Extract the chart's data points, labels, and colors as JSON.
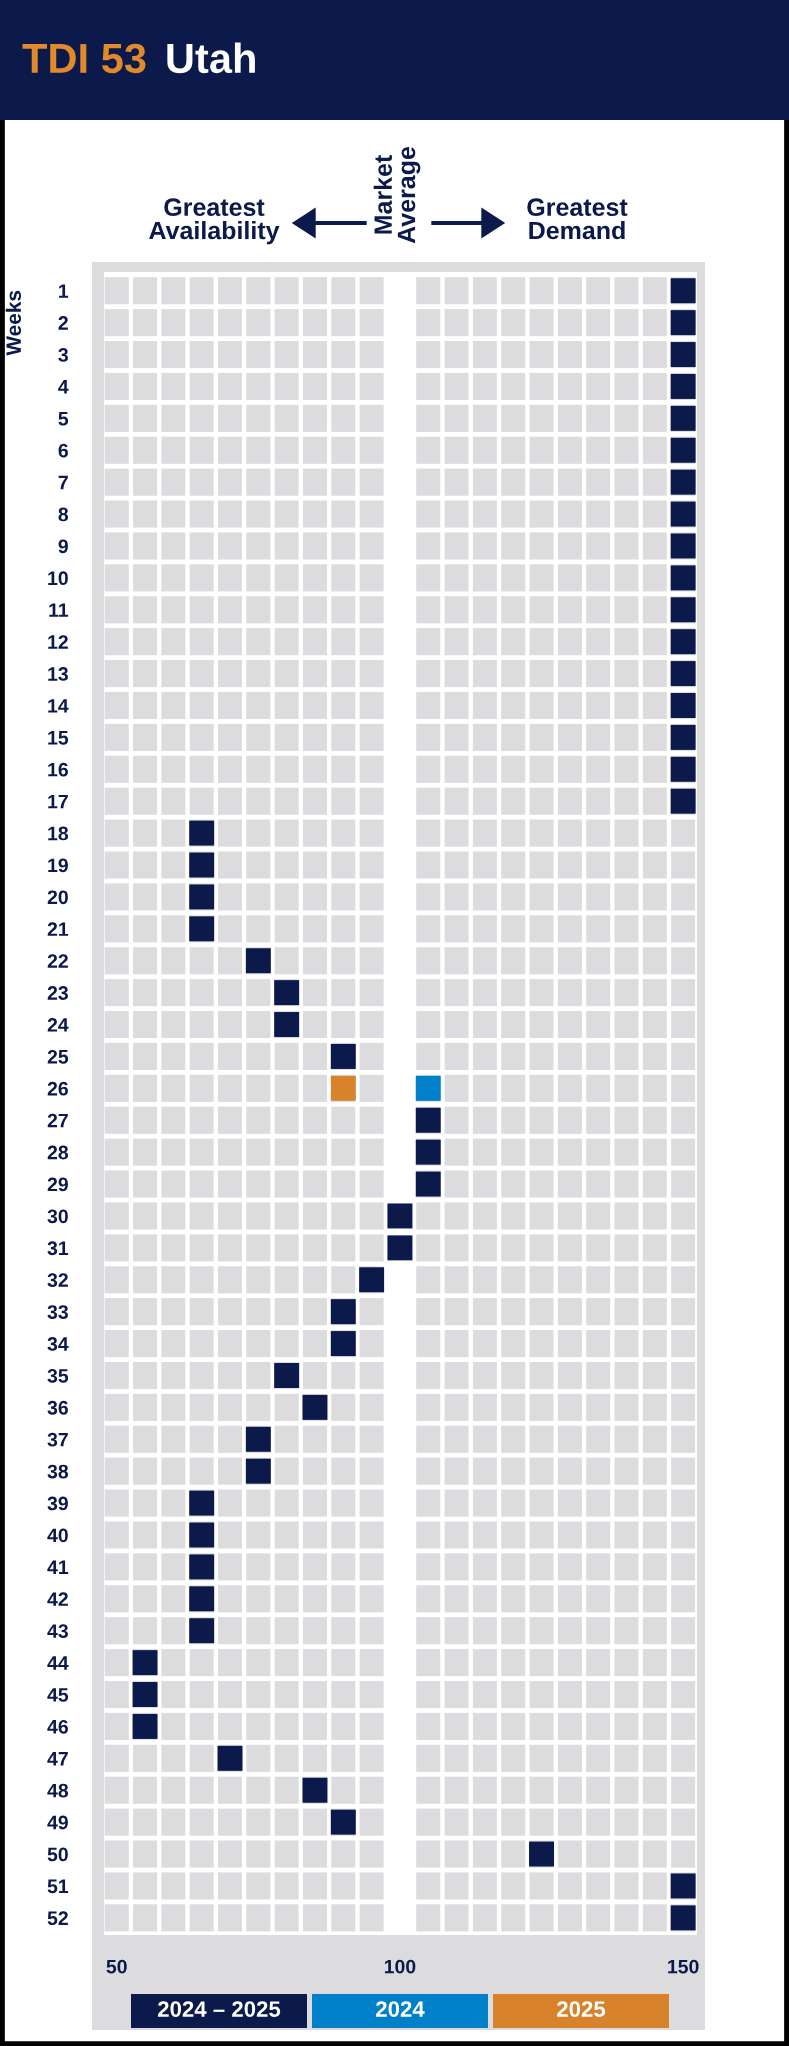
{
  "chart_data": {
    "type": "scatter",
    "title": "TDI 53",
    "subtitle": "Utah",
    "ylabel": "Weeks",
    "annotations": [
      "Greatest\nAvailability",
      "Market\nAverage",
      "Greatest\nDemand"
    ],
    "xlim": [
      47.4,
      152.8
    ],
    "xticks": [
      50,
      100,
      150
    ],
    "ylim": [
      52.6,
      0.35
    ],
    "yticks": [
      1,
      2,
      3,
      4,
      5,
      6,
      7,
      8,
      9,
      10,
      11,
      12,
      13,
      14,
      15,
      16,
      17,
      18,
      19,
      20,
      21,
      22,
      23,
      24,
      25,
      26,
      27,
      28,
      29,
      30,
      31,
      32,
      33,
      34,
      35,
      36,
      37,
      38,
      39,
      40,
      41,
      42,
      43,
      44,
      45,
      46,
      47,
      48,
      49,
      50,
      51,
      52
    ],
    "marker": "square",
    "legend": "bottom",
    "series": [
      {
        "name": "2024 – 2025",
        "color": "#0b1a4b",
        "x": [
          150,
          150,
          150,
          150,
          150,
          150,
          150,
          150,
          150,
          150,
          150,
          150,
          150,
          150,
          150,
          150,
          150,
          65,
          65,
          65,
          65,
          75,
          80,
          80,
          90,
          105,
          105,
          105,
          100,
          100,
          95,
          90,
          90,
          80,
          85,
          75,
          75,
          65,
          65,
          65,
          65,
          65,
          55,
          55,
          55,
          70,
          85,
          90,
          125,
          150,
          150
        ],
        "values": [
          1,
          2,
          3,
          4,
          5,
          6,
          7,
          8,
          9,
          10,
          11,
          12,
          13,
          14,
          15,
          16,
          17,
          18,
          19,
          20,
          21,
          22,
          23,
          24,
          25,
          27,
          28,
          29,
          30,
          31,
          32,
          33,
          34,
          35,
          36,
          37,
          38,
          39,
          40,
          41,
          42,
          43,
          44,
          45,
          46,
          47,
          48,
          49,
          50,
          51,
          52
        ]
      },
      {
        "name": "2024",
        "color": "#0080c8",
        "x": [
          105
        ],
        "values": [
          26
        ]
      },
      {
        "name": "2025",
        "color": "#d8832b",
        "x": [
          90
        ],
        "values": [
          26
        ]
      }
    ]
  }
}
